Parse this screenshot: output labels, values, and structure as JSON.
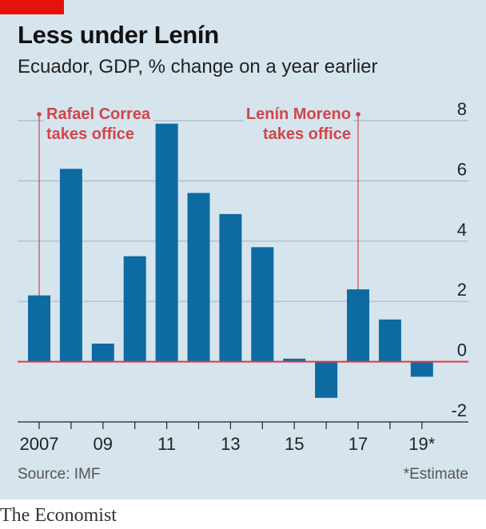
{
  "header": {
    "title": "Less under Lenín",
    "subtitle": "Ecuador, GDP, % change on a year earlier"
  },
  "footer": {
    "source": "Source: IMF",
    "footnote": "*Estimate",
    "brand": "The Economist"
  },
  "colors": {
    "bar": "#0d6ba1",
    "annotation": "#d0454c",
    "background": "#d6e4ed",
    "brand_tag": "#e3120b"
  },
  "chart_data": {
    "type": "bar",
    "title": "Less under Lenín",
    "subtitle": "Ecuador, GDP, % change on a year earlier",
    "categories": [
      "2007",
      "2008",
      "2009",
      "2010",
      "2011",
      "2012",
      "2013",
      "2014",
      "2015",
      "2016",
      "2017",
      "2018",
      "2019"
    ],
    "values": [
      2.2,
      6.4,
      0.6,
      3.5,
      7.9,
      5.6,
      4.9,
      3.8,
      0.1,
      -1.2,
      2.4,
      1.4,
      -0.5
    ],
    "x_tick_labels": [
      "2007",
      "09",
      "11",
      "13",
      "15",
      "17",
      "19*"
    ],
    "x_tick_indices": [
      0,
      2,
      4,
      6,
      8,
      10,
      12
    ],
    "y_ticks": [
      -2,
      0,
      2,
      4,
      6,
      8
    ],
    "ylim": [
      -2,
      8
    ],
    "y_axis_side": "right",
    "grid": true,
    "annotations": [
      {
        "lines": [
          "Rafael Correa",
          "takes office"
        ],
        "category_index": 0,
        "align": "left"
      },
      {
        "lines": [
          "Lenín Moreno",
          "takes office"
        ],
        "category_index": 10,
        "align": "right"
      }
    ]
  }
}
